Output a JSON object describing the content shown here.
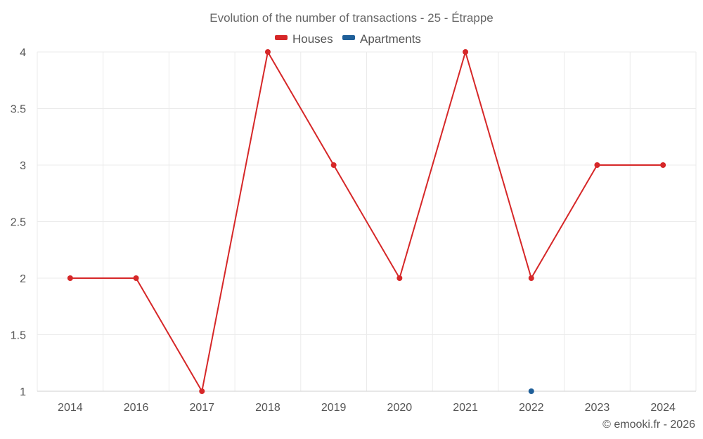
{
  "chart_data": {
    "type": "line",
    "title": "Evolution of the number of transactions - 25 - Étrappe",
    "categories": [
      "2014",
      "2016",
      "2017",
      "2018",
      "2019",
      "2020",
      "2021",
      "2022",
      "2023",
      "2024"
    ],
    "series": [
      {
        "name": "Houses",
        "color": "#d62728",
        "values": [
          2,
          2,
          1,
          4,
          3,
          2,
          4,
          2,
          3,
          3
        ]
      },
      {
        "name": "Apartments",
        "color": "#1f5f99",
        "values": [
          null,
          null,
          null,
          null,
          null,
          null,
          null,
          1,
          null,
          null
        ]
      }
    ],
    "ylim": [
      1,
      4
    ],
    "yticks": [
      "1",
      "1.5",
      "2",
      "2.5",
      "3",
      "3.5",
      "4"
    ],
    "xlabel": "",
    "ylabel": "",
    "legend_position": "top-center",
    "grid": true
  },
  "credit": "© emooki.fr - 2026"
}
